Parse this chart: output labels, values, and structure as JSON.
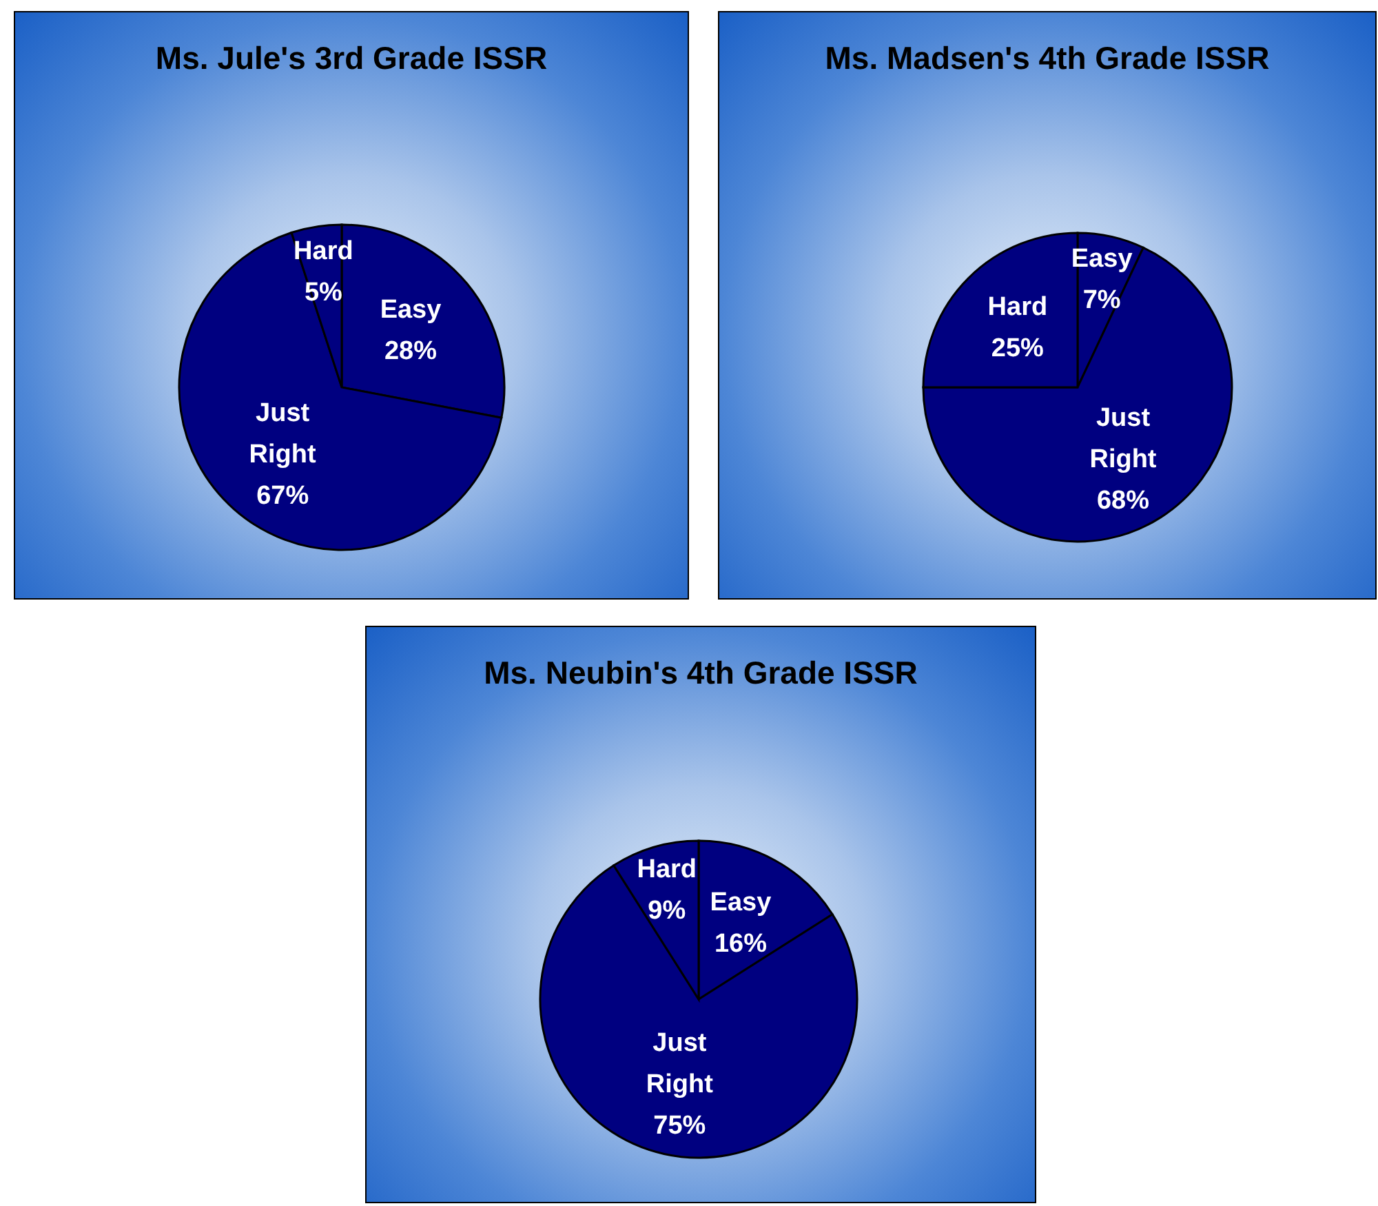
{
  "chart_data": [
    {
      "type": "pie",
      "title": "Ms. Jule's 3rd Grade ISSR",
      "categories": [
        "Easy",
        "Just Right",
        "Hard"
      ],
      "values": [
        28,
        67,
        5
      ],
      "value_labels": [
        "28%",
        "67%",
        "5%"
      ],
      "colors": [
        "#000080",
        "#000080",
        "#000080"
      ]
    },
    {
      "type": "pie",
      "title": "Ms. Madsen's 4th Grade ISSR",
      "categories": [
        "Easy",
        "Just Right",
        "Hard"
      ],
      "values": [
        7,
        68,
        25
      ],
      "value_labels": [
        "7%",
        "68%",
        "25%"
      ],
      "colors": [
        "#000080",
        "#000080",
        "#000080"
      ]
    },
    {
      "type": "pie",
      "title": "Ms. Neubin's 4th Grade ISSR",
      "categories": [
        "Easy",
        "Just Right",
        "Hard"
      ],
      "values": [
        16,
        75,
        9
      ],
      "value_labels": [
        "16%",
        "75%",
        "9%"
      ],
      "colors": [
        "#000080",
        "#000080",
        "#000080"
      ]
    }
  ]
}
